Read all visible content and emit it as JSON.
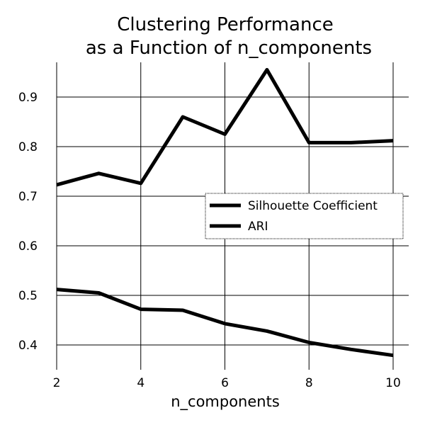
{
  "chart_data": {
    "type": "line",
    "title": [
      "Clustering Performance",
      "as a Function of n_components"
    ],
    "xlabel": "n_components",
    "ylabel": "",
    "x": [
      2,
      3,
      4,
      5,
      6,
      7,
      8,
      9,
      10
    ],
    "xlim": [
      2,
      10
    ],
    "ylim": [
      0.35,
      0.97
    ],
    "x_ticks": [
      "2",
      "4",
      "6",
      "8",
      "10"
    ],
    "y_ticks": [
      "0.4",
      "0.5",
      "0.6",
      "0.7",
      "0.8",
      "0.9"
    ],
    "grid": true,
    "legend_position": "right",
    "series": [
      {
        "name": "Silhouette Coefficient",
        "color": "#000000",
        "values": [
          0.723,
          0.746,
          0.726,
          0.86,
          0.825,
          0.955,
          0.808,
          0.808,
          0.812
        ]
      },
      {
        "name": "ARI",
        "color": "#000000",
        "values": [
          0.512,
          0.505,
          0.472,
          0.47,
          0.443,
          0.428,
          0.405,
          0.391,
          0.379
        ]
      }
    ]
  }
}
